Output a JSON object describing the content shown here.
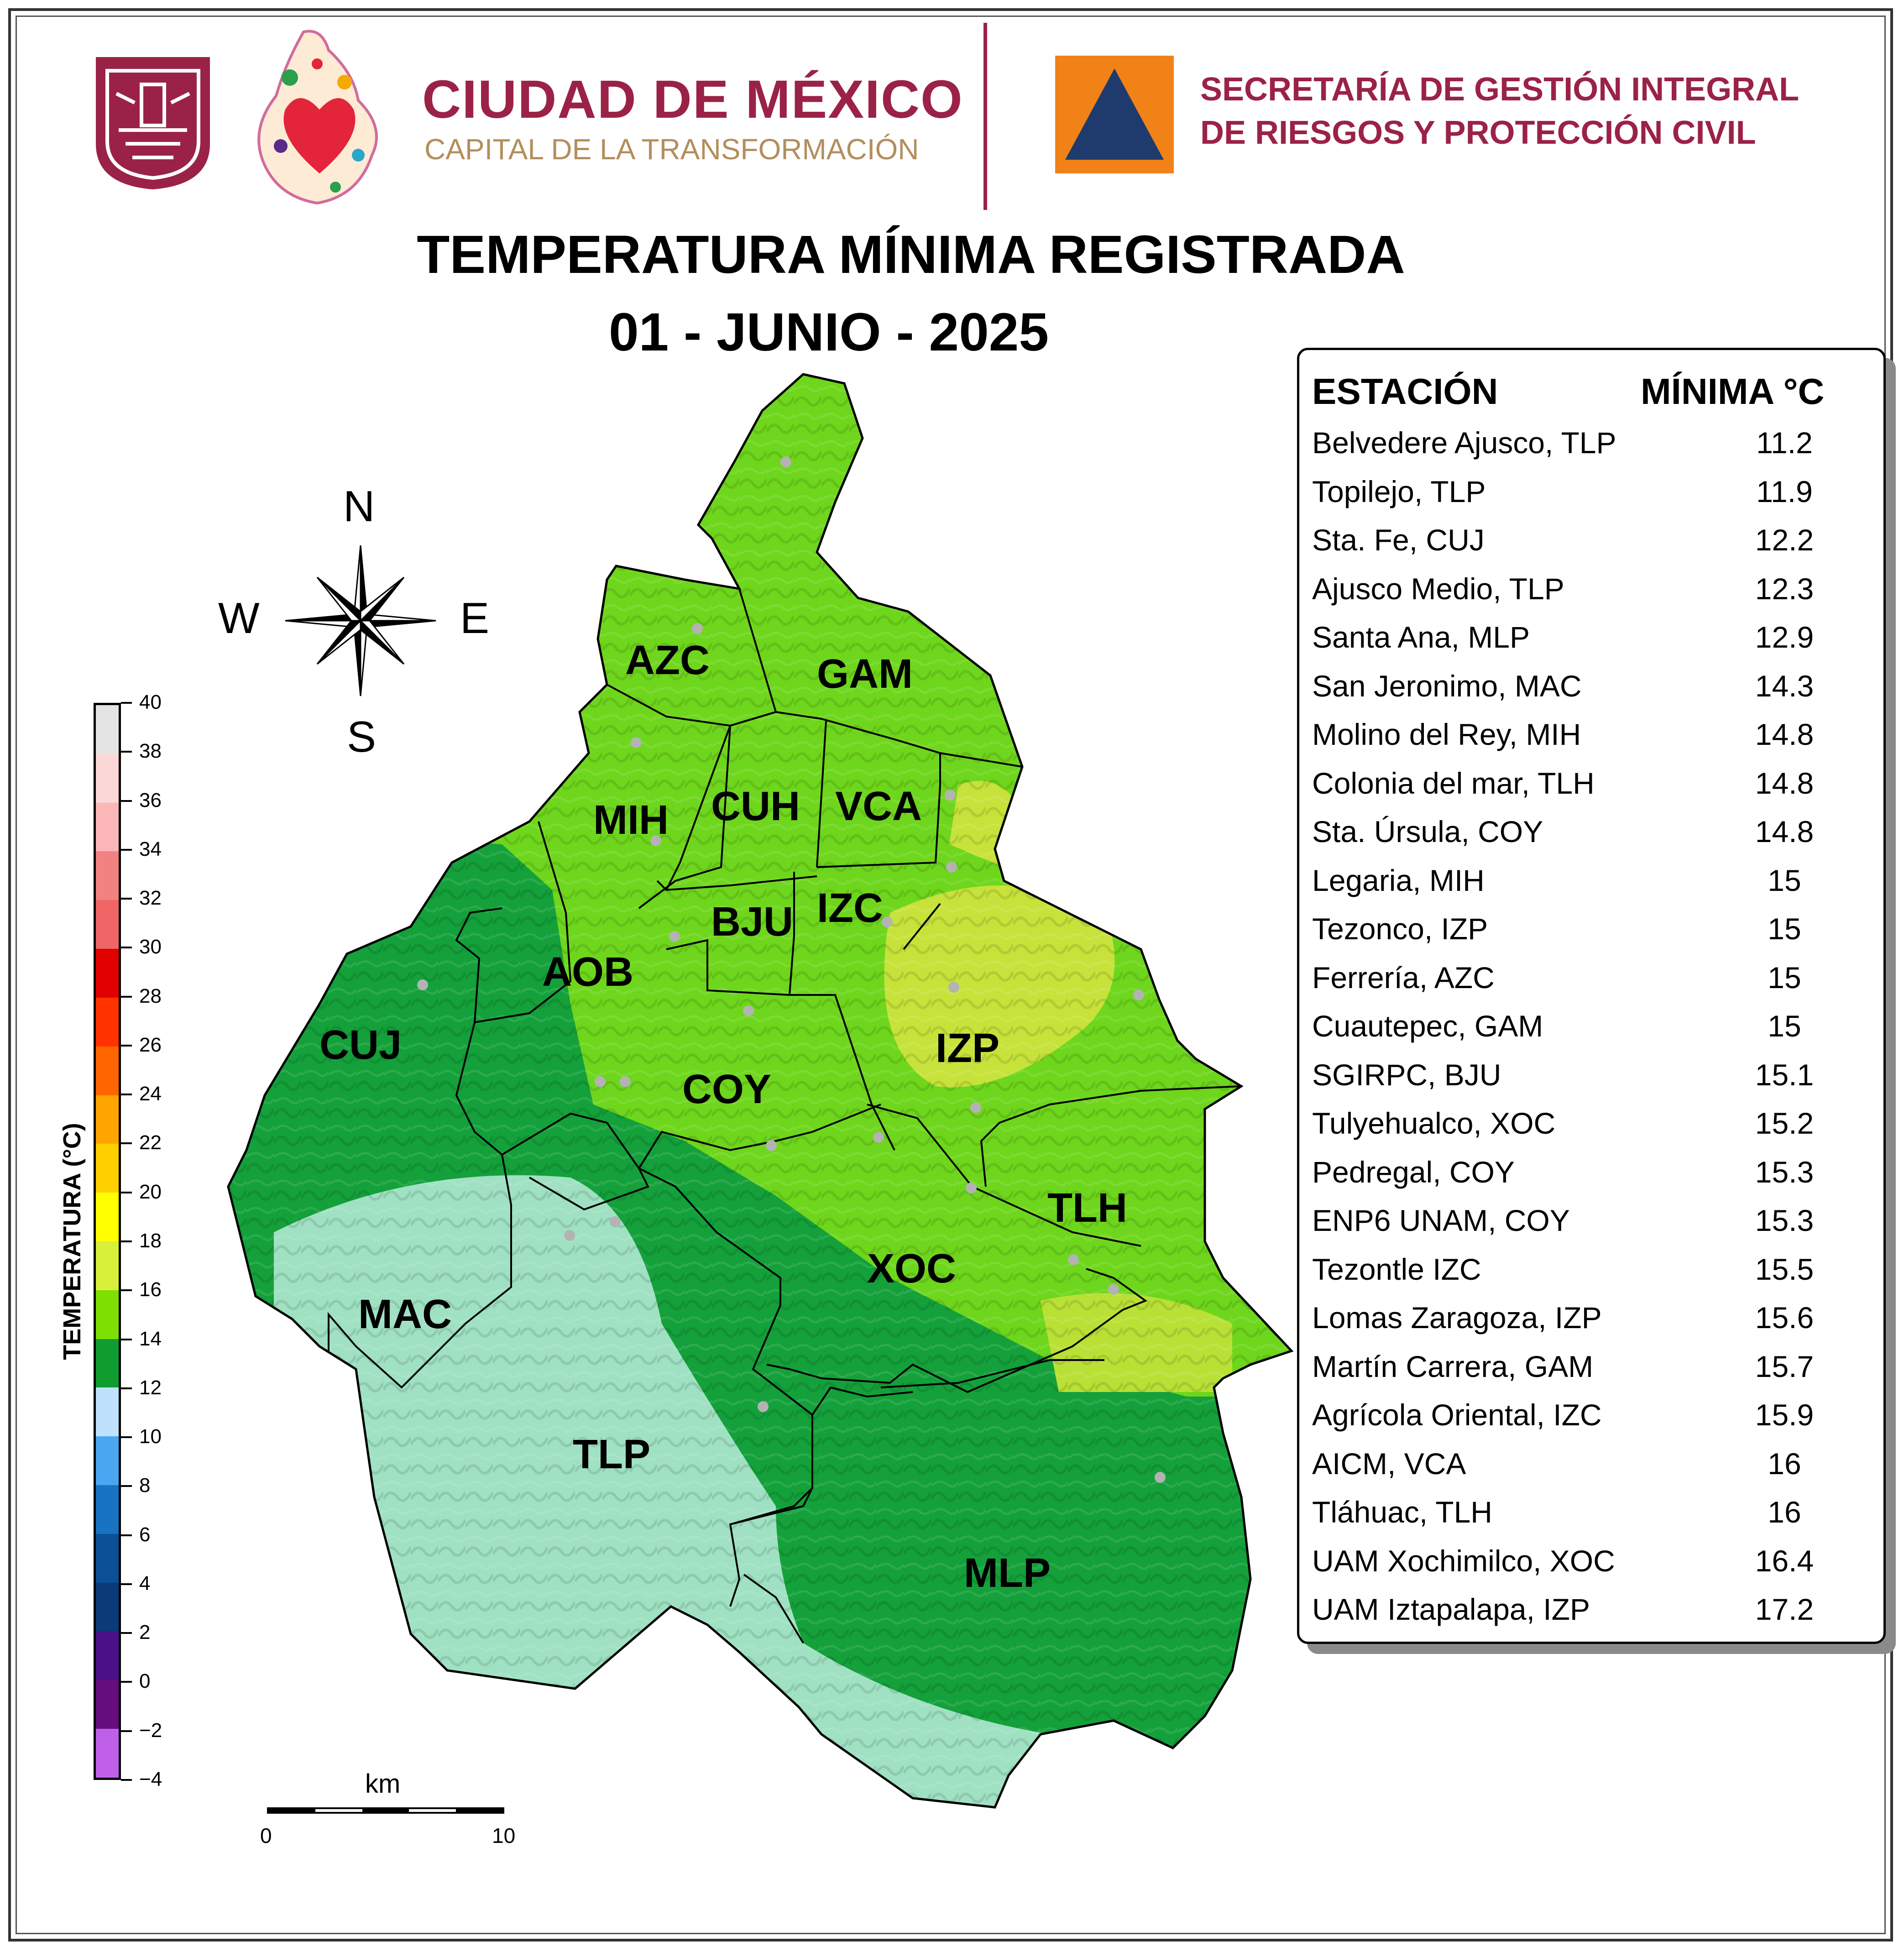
{
  "header": {
    "gov_title": "CIUDAD DE MÉXICO",
    "gov_subtitle": "CAPITAL DE LA TRANSFORMACIÓN",
    "agency_line1": "SECRETARÍA DE GESTIÓN INTEGRAL",
    "agency_line2": "DE RIESGOS Y PROTECCIÓN CIVIL",
    "colors": {
      "guinda": "#9b2247",
      "gold": "#b38e5d",
      "orange": "#f08218",
      "navy": "#1f3b6d"
    }
  },
  "title": {
    "line1": "TEMPERATURA MÍNIMA REGISTRADA",
    "line2": "01 - JUNIO - 2025"
  },
  "compass": {
    "n": "N",
    "s": "S",
    "e": "E",
    "w": "W"
  },
  "districts": [
    "AZC",
    "GAM",
    "MIH",
    "CUH",
    "VCA",
    "BJU",
    "IZC",
    "AOB",
    "CUJ",
    "COY",
    "IZP",
    "TLH",
    "XOC",
    "MAC",
    "TLP",
    "MLP"
  ],
  "legend": {
    "label": "TEMPERATURA (°C)",
    "ticks": [
      "40",
      "38",
      "36",
      "34",
      "32",
      "30",
      "28",
      "26",
      "24",
      "22",
      "20",
      "18",
      "16",
      "14",
      "12",
      "10",
      "8",
      "6",
      "4",
      "2",
      "0",
      "−2",
      "−4"
    ],
    "colors": [
      "#e4e4e4",
      "#fcd7d7",
      "#fbb7b7",
      "#f29b9b",
      "#f28282",
      "#f06666",
      "#e00000",
      "#ff3300",
      "#ff6600",
      "#ff8c00",
      "#ffa500",
      "#ffd000",
      "#ffff00",
      "#d9f03a",
      "#7ee000",
      "#119c30",
      "#8ad9b4",
      "#bfe1fb",
      "#49a7f2",
      "#1873c2",
      "#0b4f96",
      "#0a3a78",
      "#2a1a8c",
      "#4b0f88",
      "#660d80",
      "#c060e8"
    ]
  },
  "scale": {
    "unit": "km",
    "start": "0",
    "end": "10"
  },
  "table": {
    "col_station": "ESTACIÓN",
    "col_min": "MÍNIMA °C",
    "rows": [
      {
        "station": "Belvedere Ajusco, TLP",
        "min": "11.2"
      },
      {
        "station": "Topilejo, TLP",
        "min": "11.9"
      },
      {
        "station": "Sta. Fe, CUJ",
        "min": "12.2"
      },
      {
        "station": "Ajusco Medio, TLP",
        "min": "12.3"
      },
      {
        "station": "Santa Ana, MLP",
        "min": "12.9"
      },
      {
        "station": "San Jeronimo, MAC",
        "min": "14.3"
      },
      {
        "station": "Molino del Rey, MIH",
        "min": "14.8"
      },
      {
        "station": "Colonia del mar, TLH",
        "min": "14.8"
      },
      {
        "station": "Sta. Úrsula, COY",
        "min": "14.8"
      },
      {
        "station": "Legaria, MIH",
        "min": "15"
      },
      {
        "station": "Tezonco, IZP",
        "min": "15"
      },
      {
        "station": "Ferrería, AZC",
        "min": "15"
      },
      {
        "station": "Cuautepec, GAM",
        "min": "15"
      },
      {
        "station": "SGIRPC, BJU",
        "min": "15.1"
      },
      {
        "station": "Tulyehualco, XOC",
        "min": "15.2"
      },
      {
        "station": "Pedregal, COY",
        "min": "15.3"
      },
      {
        "station": "ENP6 UNAM,  COY",
        "min": "15.3"
      },
      {
        "station": "Tezontle IZC",
        "min": "15.5"
      },
      {
        "station": "Lomas Zaragoza, IZP",
        "min": "15.6"
      },
      {
        "station": "Martín Carrera, GAM",
        "min": "15.7"
      },
      {
        "station": "Agrícola Oriental, IZC",
        "min": "15.9"
      },
      {
        "station": "AICM, VCA",
        "min": "16"
      },
      {
        "station": "Tláhuac, TLH",
        "min": "16"
      },
      {
        "station": "UAM Xochimilco, XOC",
        "min": "16.4"
      },
      {
        "station": "UAM Iztapalapa, IZP",
        "min": "17.2"
      }
    ]
  }
}
